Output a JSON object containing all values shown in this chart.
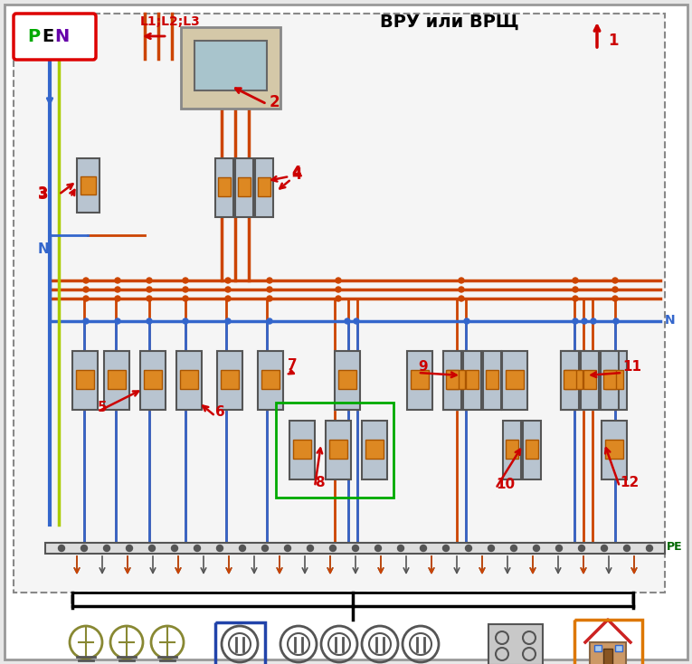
{
  "title_top_left": "ВРУ или ВРЩ",
  "pen_label": "PEN",
  "pen_color_P": "#00aa00",
  "pen_color_E": "#0000ff",
  "pen_color_N": "#aa00aa",
  "pen_box_color": "#dd0000",
  "l1l2l3_label": "L1;L2;L3",
  "n_label": "N",
  "pe_label": "PE",
  "bg_color": "#f0f0f0",
  "wire_phase_color": "#cc4400",
  "wire_neutral_color": "#3366cc",
  "wire_pe_color": "#888888",
  "wire_yellow_green": "#aacc00",
  "number_labels": [
    "1",
    "2",
    "3",
    "4",
    "5",
    "6",
    "7",
    "8",
    "9",
    "10",
    "11",
    "12"
  ],
  "label_color": "#cc0000",
  "outer_border_color": "#aaaaaa",
  "dashed_border_color": "#888888",
  "green_box_color": "#00aa00",
  "blue_box_color": "#2244aa",
  "orange_box_color": "#dd7700"
}
